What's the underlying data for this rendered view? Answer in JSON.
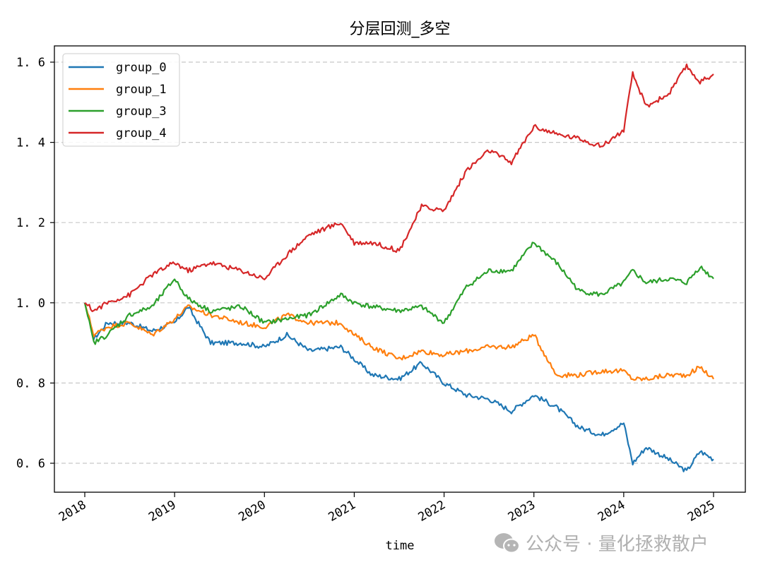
{
  "chart_data": {
    "type": "line",
    "title": "分层回测_多空",
    "xlabel": "time",
    "ylabel": "",
    "xlim": [
      2017.7,
      2025.35
    ],
    "ylim": [
      0.53,
      1.64
    ],
    "x_ticks": [
      "2018",
      "2019",
      "2020",
      "2021",
      "2022",
      "2023",
      "2024",
      "2025"
    ],
    "y_ticks": [
      "0.6",
      "0.8",
      "1.0",
      "1.2",
      "1.4",
      "1.6"
    ],
    "grid": "y dashed",
    "legend_position": "upper left",
    "x": [
      2018.0,
      2018.1,
      2018.25,
      2018.5,
      2018.75,
      2019.0,
      2019.15,
      2019.4,
      2019.75,
      2020.0,
      2020.25,
      2020.5,
      2020.85,
      2021.0,
      2021.2,
      2021.5,
      2021.75,
      2022.0,
      2022.25,
      2022.5,
      2022.75,
      2023.0,
      2023.25,
      2023.5,
      2023.75,
      2024.0,
      2024.1,
      2024.25,
      2024.5,
      2024.7,
      2024.85,
      2025.0
    ],
    "series": [
      {
        "name": "group_0",
        "color": "#1f77b4",
        "values": [
          1.0,
          0.91,
          0.95,
          0.95,
          0.93,
          0.95,
          0.99,
          0.9,
          0.9,
          0.89,
          0.92,
          0.88,
          0.89,
          0.86,
          0.82,
          0.81,
          0.85,
          0.8,
          0.77,
          0.76,
          0.73,
          0.77,
          0.74,
          0.69,
          0.67,
          0.7,
          0.6,
          0.64,
          0.61,
          0.58,
          0.63,
          0.61
        ]
      },
      {
        "name": "group_1",
        "color": "#ff7f0e",
        "values": [
          1.0,
          0.92,
          0.94,
          0.95,
          0.92,
          0.96,
          0.99,
          0.97,
          0.95,
          0.94,
          0.97,
          0.95,
          0.95,
          0.92,
          0.89,
          0.86,
          0.88,
          0.87,
          0.88,
          0.89,
          0.89,
          0.92,
          0.82,
          0.82,
          0.83,
          0.83,
          0.81,
          0.81,
          0.82,
          0.82,
          0.84,
          0.81
        ]
      },
      {
        "name": "group_3",
        "color": "#2ca02c",
        "values": [
          1.0,
          0.9,
          0.92,
          0.97,
          0.99,
          1.06,
          1.01,
          0.98,
          0.99,
          0.95,
          0.96,
          0.97,
          1.02,
          1.0,
          0.99,
          0.98,
          0.99,
          0.95,
          1.04,
          1.08,
          1.08,
          1.15,
          1.1,
          1.03,
          1.02,
          1.05,
          1.08,
          1.05,
          1.06,
          1.05,
          1.09,
          1.06
        ]
      },
      {
        "name": "group_4",
        "color": "#d62728",
        "values": [
          1.0,
          0.98,
          1.0,
          1.02,
          1.07,
          1.1,
          1.08,
          1.1,
          1.08,
          1.06,
          1.12,
          1.17,
          1.2,
          1.15,
          1.15,
          1.13,
          1.24,
          1.23,
          1.33,
          1.38,
          1.35,
          1.44,
          1.42,
          1.41,
          1.39,
          1.43,
          1.57,
          1.49,
          1.52,
          1.59,
          1.55,
          1.57
        ]
      }
    ]
  },
  "watermark": {
    "icon": "wechat-icon",
    "text": "公众号 · 量化拯救散户"
  }
}
